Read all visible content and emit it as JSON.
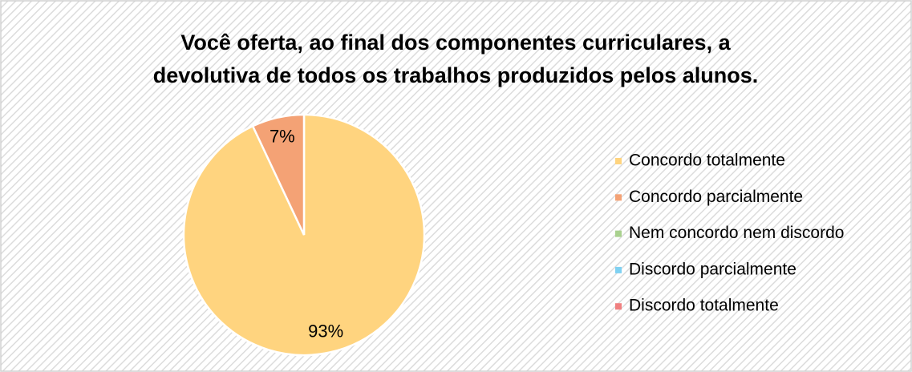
{
  "chart_data": {
    "type": "pie",
    "title": [
      "Você oferta, ao final dos componentes curriculares, a",
      "devolutiva de todos os trabalhos produzidos pelos alunos."
    ],
    "categories": [
      "Concordo totalmente",
      "Concordo parcialmente",
      "Nem concordo nem discordo",
      "Discordo parcialmente",
      "Discordo totalmente"
    ],
    "values": [
      93,
      7,
      0,
      0,
      0
    ],
    "value_labels": [
      "93%",
      "7%",
      null,
      null,
      null
    ],
    "colors": [
      "#FFD47F",
      "#F4A275",
      "#A9D18E",
      "#7FD1F2",
      "#F08080"
    ],
    "legend": "right"
  }
}
